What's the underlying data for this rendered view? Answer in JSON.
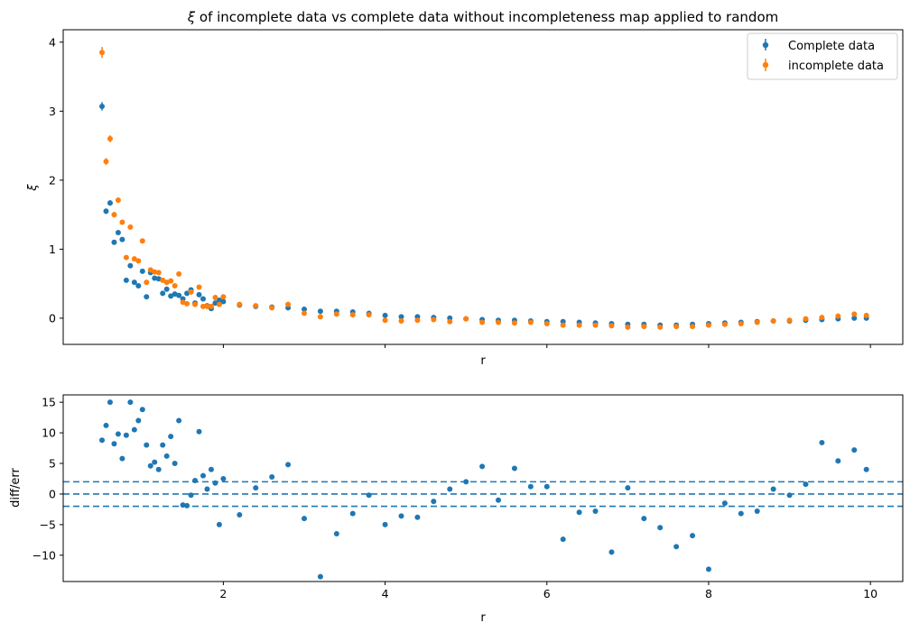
{
  "chart_data": [
    {
      "type": "scatter",
      "title": "ξ of incomplete data vs complete data without incompleteness map applied to random",
      "title_prefix": "ξ",
      "title_rest": " of incomplete data vs complete data without incompleteness map applied to random",
      "xlabel": "r",
      "ylabel": "ξ",
      "xlim": [
        0.02,
        10.4
      ],
      "ylim": [
        -0.38,
        4.18
      ],
      "yticks": [
        0,
        1,
        2,
        3,
        4
      ],
      "xticks": [
        2,
        4,
        6,
        8,
        10
      ],
      "show_x_tick_labels": false,
      "error_bars": true,
      "legend_position": "top-right",
      "series": [
        {
          "name": "Complete data",
          "color": "#1f77b4",
          "x": [
            0.5,
            0.55,
            0.6,
            0.65,
            0.7,
            0.75,
            0.8,
            0.85,
            0.9,
            0.95,
            1.0,
            1.05,
            1.1,
            1.15,
            1.2,
            1.25,
            1.3,
            1.35,
            1.4,
            1.45,
            1.5,
            1.55,
            1.6,
            1.65,
            1.7,
            1.75,
            1.8,
            1.85,
            1.9,
            1.95,
            2.0,
            2.2,
            2.4,
            2.6,
            2.8,
            3.0,
            3.2,
            3.4,
            3.6,
            3.8,
            4.0,
            4.2,
            4.4,
            4.6,
            4.8,
            5.0,
            5.2,
            5.4,
            5.6,
            5.8,
            6.0,
            6.2,
            6.4,
            6.6,
            6.8,
            7.0,
            7.2,
            7.4,
            7.6,
            7.8,
            8.0,
            8.2,
            8.4,
            8.6,
            8.8,
            9.0,
            9.2,
            9.4,
            9.6,
            9.8,
            9.95
          ],
          "y": [
            3.07,
            1.55,
            1.67,
            1.1,
            1.24,
            1.14,
            0.55,
            0.76,
            0.52,
            0.47,
            0.68,
            0.31,
            0.66,
            0.58,
            0.57,
            0.36,
            0.42,
            0.32,
            0.35,
            0.33,
            0.28,
            0.36,
            0.41,
            0.22,
            0.34,
            0.28,
            0.18,
            0.14,
            0.22,
            0.26,
            0.24,
            0.19,
            0.17,
            0.16,
            0.15,
            0.13,
            0.1,
            0.1,
            0.09,
            0.07,
            0.04,
            0.02,
            0.02,
            0.01,
            0.0,
            -0.01,
            -0.02,
            -0.03,
            -0.03,
            -0.04,
            -0.05,
            -0.05,
            -0.06,
            -0.07,
            -0.08,
            -0.09,
            -0.09,
            -0.1,
            -0.1,
            -0.09,
            -0.08,
            -0.07,
            -0.06,
            -0.05,
            -0.04,
            -0.04,
            -0.03,
            -0.02,
            -0.01,
            0.0,
            0.0
          ],
          "err": [
            0.06,
            0.04,
            0.04,
            0.03,
            0.03,
            0.03,
            0.02,
            0.02,
            0.02,
            0.02,
            0.02,
            0.02,
            0.02,
            0.02,
            0.02,
            0.02,
            0.02,
            0.02,
            0.02,
            0.02,
            0.02,
            0.02,
            0.02,
            0.02,
            0.02,
            0.02,
            0.02,
            0.02,
            0.02,
            0.02,
            0.02,
            0.02,
            0.02,
            0.02,
            0.02,
            0.02,
            0.02,
            0.02,
            0.02,
            0.02,
            0.02,
            0.02,
            0.02,
            0.02,
            0.02,
            0.02,
            0.02,
            0.02,
            0.02,
            0.02,
            0.02,
            0.02,
            0.02,
            0.02,
            0.02,
            0.02,
            0.02,
            0.02,
            0.02,
            0.02,
            0.02,
            0.02,
            0.02,
            0.02,
            0.02,
            0.02,
            0.02,
            0.02,
            0.02,
            0.02,
            0.02
          ]
        },
        {
          "name": "incomplete data",
          "color": "#ff7f0e",
          "x": [
            0.5,
            0.55,
            0.6,
            0.65,
            0.7,
            0.75,
            0.8,
            0.85,
            0.9,
            0.95,
            1.0,
            1.05,
            1.1,
            1.15,
            1.2,
            1.25,
            1.3,
            1.35,
            1.4,
            1.45,
            1.5,
            1.55,
            1.6,
            1.65,
            1.7,
            1.75,
            1.8,
            1.85,
            1.9,
            1.95,
            2.0,
            2.2,
            2.4,
            2.6,
            2.8,
            3.0,
            3.2,
            3.4,
            3.6,
            3.8,
            4.0,
            4.2,
            4.4,
            4.6,
            4.8,
            5.0,
            5.2,
            5.4,
            5.6,
            5.8,
            6.0,
            6.2,
            6.4,
            6.6,
            6.8,
            7.0,
            7.2,
            7.4,
            7.6,
            7.8,
            8.0,
            8.2,
            8.4,
            8.6,
            8.8,
            9.0,
            9.2,
            9.4,
            9.6,
            9.8,
            9.95
          ],
          "y": [
            3.85,
            2.27,
            2.6,
            1.5,
            1.71,
            1.39,
            0.88,
            1.32,
            0.86,
            0.83,
            1.12,
            0.52,
            0.7,
            0.67,
            0.66,
            0.55,
            0.52,
            0.54,
            0.47,
            0.64,
            0.23,
            0.21,
            0.38,
            0.2,
            0.45,
            0.17,
            0.17,
            0.17,
            0.3,
            0.2,
            0.31,
            0.2,
            0.18,
            0.15,
            0.2,
            0.07,
            0.02,
            0.06,
            0.05,
            0.05,
            -0.03,
            -0.04,
            -0.03,
            -0.02,
            -0.05,
            -0.01,
            -0.06,
            -0.06,
            -0.07,
            -0.06,
            -0.08,
            -0.1,
            -0.1,
            -0.1,
            -0.11,
            -0.13,
            -0.12,
            -0.13,
            -0.12,
            -0.12,
            -0.1,
            -0.09,
            -0.08,
            -0.06,
            -0.04,
            -0.03,
            -0.01,
            0.01,
            0.03,
            0.06,
            0.04
          ],
          "err": [
            0.08,
            0.05,
            0.05,
            0.04,
            0.04,
            0.03,
            0.03,
            0.03,
            0.02,
            0.02,
            0.02,
            0.02,
            0.02,
            0.02,
            0.02,
            0.02,
            0.02,
            0.02,
            0.02,
            0.02,
            0.02,
            0.02,
            0.02,
            0.02,
            0.02,
            0.02,
            0.02,
            0.02,
            0.02,
            0.02,
            0.02,
            0.02,
            0.02,
            0.02,
            0.02,
            0.02,
            0.02,
            0.02,
            0.02,
            0.02,
            0.02,
            0.02,
            0.02,
            0.02,
            0.02,
            0.02,
            0.02,
            0.02,
            0.02,
            0.02,
            0.02,
            0.02,
            0.02,
            0.02,
            0.02,
            0.02,
            0.02,
            0.02,
            0.02,
            0.02,
            0.02,
            0.02,
            0.02,
            0.02,
            0.02,
            0.02,
            0.02,
            0.02,
            0.02,
            0.02,
            0.02
          ]
        }
      ]
    },
    {
      "type": "scatter",
      "title": "",
      "xlabel": "r",
      "ylabel": "diff/err",
      "xlim": [
        0.02,
        10.4
      ],
      "ylim": [
        -14.3,
        16.2
      ],
      "yticks": [
        -10,
        -5,
        0,
        5,
        10,
        15
      ],
      "ytick_labels": [
        "−10",
        "−5",
        "0",
        "5",
        "10",
        "15"
      ],
      "xticks": [
        2,
        4,
        6,
        8,
        10
      ],
      "xtick_labels": [
        "2",
        "4",
        "6",
        "8",
        "10"
      ],
      "hlines": [
        -2,
        0,
        2
      ],
      "hline_style": "dashed",
      "series": [
        {
          "color": "#1f77b4",
          "x": [
            0.5,
            0.55,
            0.6,
            0.65,
            0.7,
            0.75,
            0.8,
            0.85,
            0.9,
            0.95,
            1.0,
            1.05,
            1.1,
            1.15,
            1.2,
            1.25,
            1.3,
            1.35,
            1.4,
            1.45,
            1.5,
            1.55,
            1.6,
            1.65,
            1.7,
            1.75,
            1.8,
            1.85,
            1.9,
            1.95,
            2.0,
            2.2,
            2.4,
            2.6,
            2.8,
            3.0,
            3.2,
            3.4,
            3.6,
            3.8,
            4.0,
            4.2,
            4.4,
            4.6,
            4.8,
            5.0,
            5.2,
            5.4,
            5.6,
            5.8,
            6.0,
            6.2,
            6.4,
            6.6,
            6.8,
            7.0,
            7.2,
            7.4,
            7.6,
            7.8,
            8.0,
            8.2,
            8.4,
            8.6,
            8.8,
            9.0,
            9.2,
            9.4,
            9.6,
            9.8,
            9.95
          ],
          "y": [
            8.8,
            11.2,
            15.0,
            8.2,
            9.8,
            5.8,
            9.6,
            15.0,
            10.5,
            12.0,
            13.8,
            8.0,
            4.6,
            5.2,
            4.0,
            8.0,
            6.2,
            9.4,
            5.0,
            12.0,
            -1.8,
            -1.9,
            -0.2,
            2.2,
            10.2,
            3.0,
            0.8,
            4.0,
            1.8,
            -5.0,
            2.5,
            -3.4,
            1.0,
            2.8,
            4.8,
            -4.0,
            -13.5,
            -6.5,
            -3.2,
            -0.2,
            -5.0,
            -3.6,
            -3.8,
            -1.2,
            0.8,
            2.0,
            4.5,
            -1.0,
            4.2,
            1.2,
            1.2,
            -7.4,
            -3.0,
            -2.8,
            -9.5,
            1.0,
            -4.0,
            -5.5,
            -8.6,
            -6.8,
            -12.3,
            -1.5,
            -3.2,
            -2.8,
            0.8,
            -0.2,
            1.6,
            8.4,
            5.4,
            7.2,
            4.0
          ]
        }
      ]
    }
  ]
}
